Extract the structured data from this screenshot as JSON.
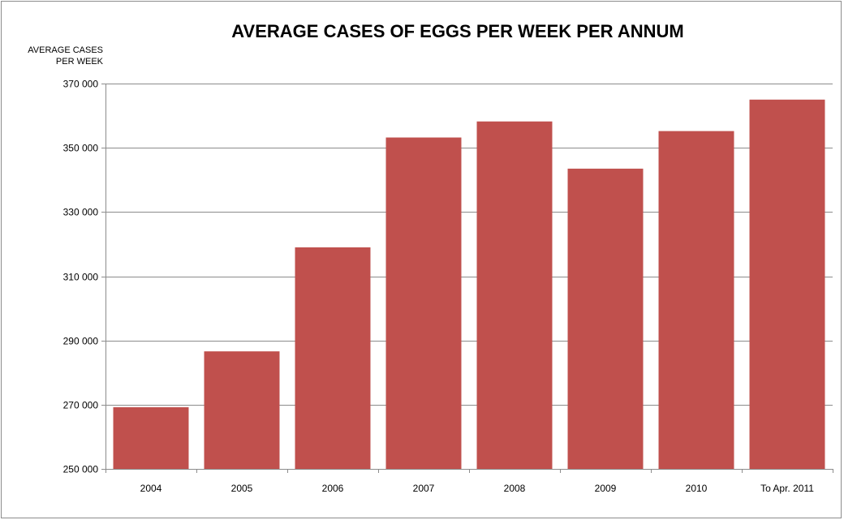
{
  "chart_data": {
    "type": "bar",
    "title": "AVERAGE CASES OF EGGS PER WEEK PER ANNUM",
    "ylabel_lines": [
      "AVERAGE CASES",
      "PER WEEK"
    ],
    "xlabel": "",
    "categories": [
      "2004",
      "2005",
      "2006",
      "2007",
      "2008",
      "2009",
      "2010",
      "To Apr. 2011"
    ],
    "values": [
      269200,
      286600,
      319000,
      353200,
      358200,
      343500,
      355200,
      365000
    ],
    "ylim": [
      250000,
      370000
    ],
    "yticks": [
      250000,
      270000,
      290000,
      310000,
      330000,
      350000,
      370000
    ],
    "ytick_labels": [
      "250 000",
      "270 000",
      "290 000",
      "310 000",
      "330 000",
      "350 000",
      "370 000"
    ],
    "bar_color": "#c0504d",
    "grid": true,
    "legend": "none"
  }
}
